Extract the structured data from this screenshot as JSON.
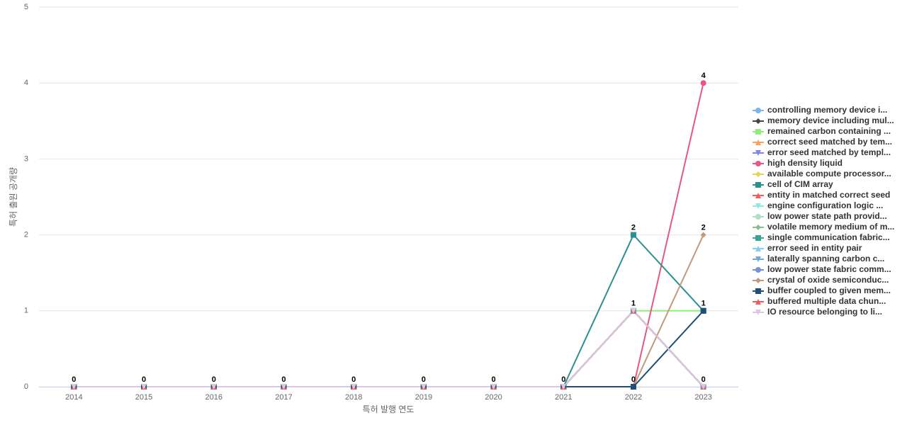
{
  "chart_data": {
    "type": "line",
    "x_label": "특허 발행 연도",
    "y_label": "특허 출원 공개량",
    "categories": [
      "2014",
      "2015",
      "2016",
      "2017",
      "2018",
      "2019",
      "2020",
      "2021",
      "2022",
      "2023"
    ],
    "ylim": [
      0,
      5
    ],
    "yticks": [
      0,
      1,
      2,
      3,
      4,
      5
    ],
    "grid": true,
    "legend": "right",
    "series": [
      {
        "name": "controlling memory device i...",
        "color": "#7cb5ec",
        "marker": "circle",
        "values": [
          0,
          0,
          0,
          0,
          0,
          0,
          0,
          0,
          1,
          0
        ]
      },
      {
        "name": "memory device including mul...",
        "color": "#434348",
        "marker": "diamond",
        "values": [
          0,
          0,
          0,
          0,
          0,
          0,
          0,
          0,
          1,
          0
        ]
      },
      {
        "name": "remained carbon containing ...",
        "color": "#90ed7d",
        "marker": "square",
        "values": [
          0,
          0,
          0,
          0,
          0,
          0,
          0,
          0,
          1,
          1
        ]
      },
      {
        "name": "correct seed matched by tem...",
        "color": "#f7a35c",
        "marker": "triangle",
        "values": [
          0,
          0,
          0,
          0,
          0,
          0,
          0,
          0,
          1,
          0
        ]
      },
      {
        "name": "error seed matched by templ...",
        "color": "#8085e9",
        "marker": "triangle-down",
        "values": [
          0,
          0,
          0,
          0,
          0,
          0,
          0,
          0,
          1,
          0
        ]
      },
      {
        "name": "high density liquid",
        "color": "#e8577f",
        "marker": "circle",
        "values": [
          0,
          0,
          0,
          0,
          0,
          0,
          0,
          0,
          0,
          4
        ]
      },
      {
        "name": "available compute processor...",
        "color": "#e4d354",
        "marker": "diamond",
        "values": [
          0,
          0,
          0,
          0,
          0,
          0,
          0,
          0,
          1,
          0
        ]
      },
      {
        "name": "cell of CIM array",
        "color": "#2b908f",
        "marker": "square",
        "values": [
          0,
          0,
          0,
          0,
          0,
          0,
          0,
          0,
          2,
          1
        ]
      },
      {
        "name": "entity in matched correct seed",
        "color": "#f45b5b",
        "marker": "triangle",
        "values": [
          0,
          0,
          0,
          0,
          0,
          0,
          0,
          0,
          1,
          0
        ]
      },
      {
        "name": "engine configuration logic ...",
        "color": "#91e8e1",
        "marker": "triangle-down",
        "values": [
          0,
          0,
          0,
          0,
          0,
          0,
          0,
          0,
          1,
          0
        ]
      },
      {
        "name": "low power state path provid...",
        "color": "#b0dfc9",
        "marker": "circle",
        "values": [
          0,
          0,
          0,
          0,
          0,
          0,
          0,
          0,
          1,
          0
        ]
      },
      {
        "name": "volatile memory medium of m...",
        "color": "#8fbc8f",
        "marker": "diamond",
        "values": [
          0,
          0,
          0,
          0,
          0,
          0,
          0,
          0,
          1,
          0
        ]
      },
      {
        "name": "single communication fabric...",
        "color": "#3aa58f",
        "marker": "square",
        "values": [
          0,
          0,
          0,
          0,
          0,
          0,
          0,
          0,
          1,
          0
        ]
      },
      {
        "name": "error seed in entity pair",
        "color": "#87ceeb",
        "marker": "triangle",
        "values": [
          0,
          0,
          0,
          0,
          0,
          0,
          0,
          0,
          1,
          0
        ]
      },
      {
        "name": "laterally spanning carbon c...",
        "color": "#6fa8dc",
        "marker": "triangle-down",
        "values": [
          0,
          0,
          0,
          0,
          0,
          0,
          0,
          0,
          1,
          0
        ]
      },
      {
        "name": "low power state fabric comm...",
        "color": "#7b8fd4",
        "marker": "circle",
        "values": [
          0,
          0,
          0,
          0,
          0,
          0,
          0,
          0,
          1,
          0
        ]
      },
      {
        "name": "crystal of oxide semiconduc...",
        "color": "#c09a7e",
        "marker": "diamond",
        "values": [
          0,
          0,
          0,
          0,
          0,
          0,
          0,
          0,
          0,
          2
        ]
      },
      {
        "name": "buffer coupled to given mem...",
        "color": "#1f4e79",
        "marker": "square",
        "values": [
          0,
          0,
          0,
          0,
          0,
          0,
          0,
          0,
          0,
          1
        ]
      },
      {
        "name": "buffered multiple data chun...",
        "color": "#e8605e",
        "marker": "triangle",
        "values": [
          0,
          0,
          0,
          0,
          0,
          0,
          0,
          0,
          1,
          0
        ]
      },
      {
        "name": "IO resource belonging to li...",
        "color": "#dcc6e0",
        "marker": "triangle-down",
        "values": [
          0,
          0,
          0,
          0,
          0,
          0,
          0,
          0,
          1,
          0
        ]
      }
    ]
  }
}
